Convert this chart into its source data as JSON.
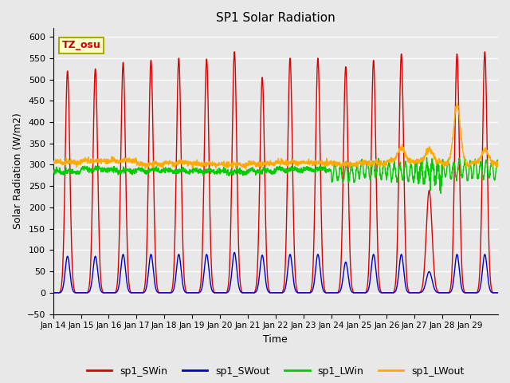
{
  "title": "SP1 Solar Radiation",
  "xlabel": "Time",
  "ylabel": "Solar Radiation (W/m2)",
  "ylim": [
    -50,
    620
  ],
  "yticks": [
    -50,
    0,
    50,
    100,
    150,
    200,
    250,
    300,
    350,
    400,
    450,
    500,
    550,
    600
  ],
  "xtick_labels": [
    "Jan 14",
    "Jan 15",
    "Jan 16",
    "Jan 17",
    "Jan 18",
    "Jan 19",
    "Jan 20",
    "Jan 21",
    "Jan 22",
    "Jan 23",
    "Jan 24",
    "Jan 25",
    "Jan 26",
    "Jan 27",
    "Jan 28",
    "Jan 29"
  ],
  "background_color": "#e8e8e8",
  "grid_color": "#ffffff",
  "colors": {
    "SWin": "#dd0000",
    "SWout": "#0000cc",
    "LWin": "#00cc00",
    "LWout": "#ffaa00"
  },
  "annotation_text": "TZ_osu",
  "annotation_color": "#cc0000",
  "annotation_bg": "#ffffcc",
  "annotation_border": "#aaaa00",
  "num_days": 16,
  "points_per_day": 144
}
